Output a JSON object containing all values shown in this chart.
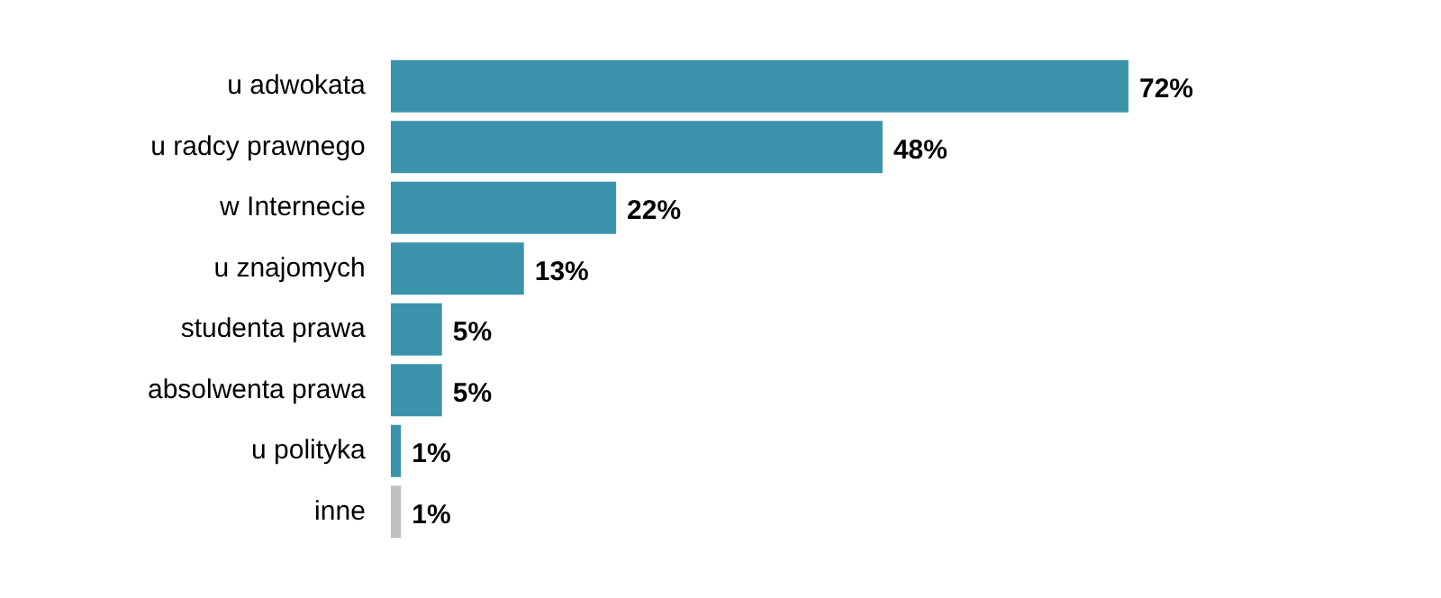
{
  "chart_data": {
    "type": "bar",
    "orientation": "horizontal",
    "categories": [
      "u adwokata",
      "u radcy prawnego",
      "w Internecie",
      "u znajomych",
      "studenta prawa",
      "absolwenta prawa",
      "u polityka",
      "inne"
    ],
    "values": [
      72,
      48,
      22,
      13,
      5,
      5,
      1,
      1
    ],
    "colors": [
      "#3a93ab",
      "#3a93ab",
      "#3a93ab",
      "#3a93ab",
      "#3a93ab",
      "#3a93ab",
      "#3a93ab",
      "#bfbfbf"
    ],
    "value_labels": [
      "72%",
      "48%",
      "22%",
      "13%",
      "5%",
      "5%",
      "1%",
      "1%"
    ],
    "legend": false,
    "tick_labels": "y"
  }
}
